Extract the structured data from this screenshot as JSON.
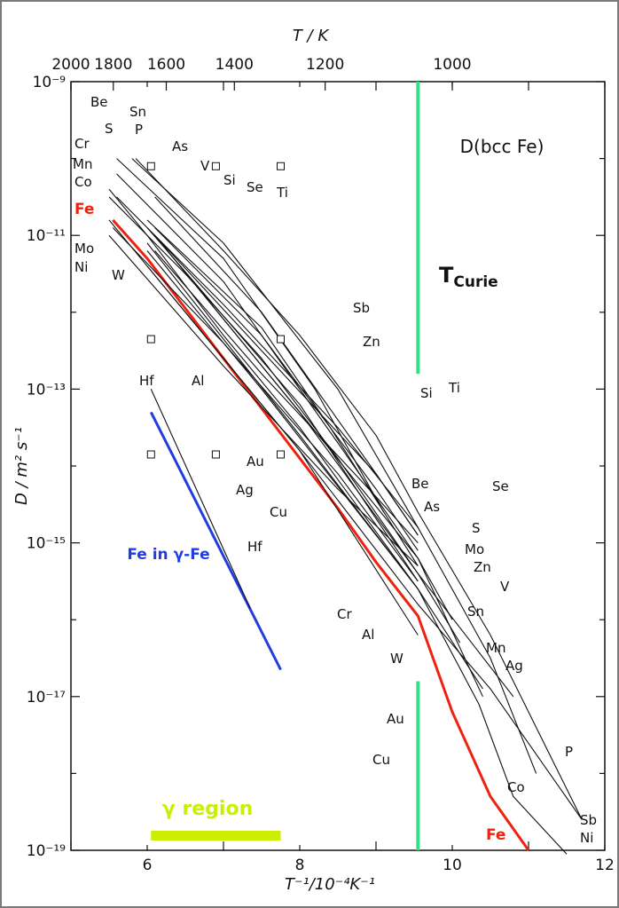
{
  "chart_data": {
    "type": "line",
    "title": "D(bcc Fe)",
    "xlabel": "T⁻¹/10⁻⁴K⁻¹",
    "ylabel": "D / m² s⁻¹",
    "top_axis_label": "T / K",
    "xlim": [
      5,
      12
    ],
    "ylim_log10": [
      -19,
      -9
    ],
    "y_scale": "log",
    "x_ticks": [
      "6",
      "8",
      "10",
      "12"
    ],
    "y_ticks": [
      "10⁻¹⁹",
      "10⁻¹⁷",
      "10⁻¹⁵",
      "10⁻¹³",
      "10⁻¹¹",
      "10⁻⁹"
    ],
    "top_ticks": [
      "2000",
      "1800",
      "1600",
      "1400",
      "1200",
      "1000"
    ],
    "colors": {
      "fe": "#ee2211",
      "gamma": "#1f3de0",
      "curie": "#33e08a",
      "region": "#ccee00"
    },
    "series": [
      {
        "name": "Fe",
        "color": "#ee2211",
        "points": [
          [
            5.55,
            -10.8
          ],
          [
            6.0,
            -11.3
          ],
          [
            6.5,
            -11.95
          ],
          [
            7.0,
            -12.6
          ],
          [
            7.5,
            -13.25
          ],
          [
            8.0,
            -13.9
          ],
          [
            8.5,
            -14.55
          ],
          [
            9.0,
            -15.25
          ],
          [
            9.55,
            -15.95
          ],
          [
            10.0,
            -17.2
          ],
          [
            10.5,
            -18.3
          ],
          [
            11.0,
            -19.0
          ]
        ]
      },
      {
        "name": "Fe in γ-Fe",
        "color": "#1f3de0",
        "points": [
          [
            6.05,
            -13.3
          ],
          [
            7.75,
            -16.65
          ]
        ]
      },
      {
        "name": "Hf",
        "points": [
          [
            6.05,
            -13.0
          ],
          [
            7.35,
            -15.85
          ]
        ]
      },
      {
        "name": "Co",
        "points": [
          [
            5.5,
            -10.4
          ],
          [
            6.0,
            -11.0
          ],
          [
            7.0,
            -12.3
          ],
          [
            8.0,
            -13.5
          ],
          [
            9.55,
            -15.6
          ],
          [
            10.35,
            -17.1
          ],
          [
            10.8,
            -18.3
          ],
          [
            11.5,
            -19.05
          ]
        ]
      },
      {
        "name": "Ni",
        "points": [
          [
            5.5,
            -10.8
          ],
          [
            6.0,
            -11.4
          ],
          [
            7.0,
            -12.6
          ],
          [
            8.0,
            -13.8
          ],
          [
            9.55,
            -15.8
          ],
          [
            10.5,
            -16.9
          ],
          [
            11.7,
            -18.6
          ]
        ]
      },
      {
        "name": "Sb",
        "points": [
          [
            5.85,
            -10.0
          ],
          [
            7.0,
            -11.2
          ],
          [
            8.0,
            -12.3
          ],
          [
            9.0,
            -13.6
          ],
          [
            9.55,
            -14.6
          ],
          [
            10.5,
            -16.2
          ],
          [
            11.7,
            -18.6
          ]
        ]
      },
      {
        "name": "P",
        "points": [
          [
            5.8,
            -10.0
          ],
          [
            7.0,
            -11.1
          ],
          [
            8.5,
            -13.0
          ],
          [
            9.55,
            -14.8
          ],
          [
            10.5,
            -16.5
          ],
          [
            11.1,
            -18.0
          ]
        ]
      },
      {
        "name": "Mn",
        "points": [
          [
            5.5,
            -10.5
          ],
          [
            6.5,
            -11.5
          ],
          [
            7.5,
            -12.6
          ],
          [
            8.5,
            -13.9
          ],
          [
            9.55,
            -15.4
          ],
          [
            10.1,
            -16.3
          ]
        ]
      },
      {
        "name": "Sn",
        "points": [
          [
            5.6,
            -10.2
          ],
          [
            7.0,
            -11.6
          ],
          [
            8.5,
            -13.7
          ],
          [
            9.55,
            -15.2
          ],
          [
            10.0,
            -16.0
          ]
        ]
      },
      {
        "name": "Be",
        "points": [
          [
            5.6,
            -10.0
          ],
          [
            7.0,
            -11.3
          ],
          [
            8.2,
            -13.0
          ],
          [
            9.1,
            -14.6
          ]
        ]
      },
      {
        "name": "Zn",
        "points": [
          [
            6.0,
            -10.8
          ],
          [
            7.5,
            -12.2
          ],
          [
            8.4,
            -13.5
          ],
          [
            9.55,
            -15.3
          ]
        ]
      },
      {
        "name": "Mo",
        "points": [
          [
            5.5,
            -11.0
          ],
          [
            7.0,
            -12.7
          ],
          [
            8.5,
            -14.3
          ],
          [
            9.55,
            -15.3
          ]
        ]
      },
      {
        "name": "Al",
        "points": [
          [
            6.0,
            -11.2
          ],
          [
            7.5,
            -13.0
          ],
          [
            9.0,
            -14.9
          ],
          [
            9.55,
            -15.6
          ]
        ]
      },
      {
        "name": "W",
        "points": [
          [
            6.0,
            -11.4
          ],
          [
            8.0,
            -13.8
          ],
          [
            9.55,
            -16.2
          ]
        ]
      },
      {
        "name": "Cu",
        "points": [
          [
            6.0,
            -11.1
          ],
          [
            8.0,
            -13.6
          ],
          [
            9.55,
            -15.6
          ],
          [
            10.4,
            -16.9
          ]
        ]
      },
      {
        "name": "Au",
        "points": [
          [
            6.1,
            -11.0
          ],
          [
            8.0,
            -13.3
          ],
          [
            9.55,
            -15.2
          ],
          [
            10.4,
            -17.0
          ]
        ]
      },
      {
        "name": "Ag",
        "points": [
          [
            6.1,
            -11.0
          ],
          [
            8.0,
            -13.3
          ],
          [
            9.55,
            -15.4
          ],
          [
            10.8,
            -17.0
          ]
        ]
      },
      {
        "name": "V",
        "points": [
          [
            6.0,
            -10.9
          ],
          [
            8.0,
            -13.2
          ],
          [
            9.55,
            -15.5
          ]
        ]
      },
      {
        "name": "Cr",
        "points": [
          [
            5.55,
            -10.9
          ],
          [
            7.0,
            -12.4
          ],
          [
            8.5,
            -14.1
          ],
          [
            9.55,
            -15.5
          ]
        ]
      },
      {
        "name": "Si",
        "points": [
          [
            6.1,
            -10.9
          ],
          [
            7.5,
            -12.3
          ],
          [
            9.0,
            -14.3
          ],
          [
            9.55,
            -15.1
          ]
        ]
      },
      {
        "name": "Se",
        "points": [
          [
            6.1,
            -11.0
          ],
          [
            7.5,
            -12.5
          ],
          [
            9.0,
            -14.1
          ],
          [
            9.55,
            -14.9
          ]
        ]
      },
      {
        "name": "Ti",
        "points": [
          [
            6.1,
            -11.2
          ],
          [
            7.5,
            -12.8
          ],
          [
            9.0,
            -14.4
          ],
          [
            9.55,
            -15.0
          ]
        ]
      },
      {
        "name": "S",
        "points": [
          [
            5.6,
            -10.5
          ],
          [
            7.0,
            -11.9
          ],
          [
            8.5,
            -13.5
          ],
          [
            9.55,
            -14.8
          ]
        ]
      },
      {
        "name": "As",
        "points": [
          [
            6.1,
            -10.5
          ],
          [
            7.5,
            -12.0
          ],
          [
            9.0,
            -14.1
          ],
          [
            9.55,
            -14.9
          ]
        ]
      }
    ],
    "annotations": {
      "curie": "TCurie",
      "curie_x": 9.55,
      "gamma_region": "γ region",
      "gamma_region_x": [
        6.05,
        7.75
      ],
      "fe_gamma": "Fe in γ-Fe",
      "fe": "Fe"
    },
    "labels": [
      "Be",
      "Sn",
      "S",
      "P",
      "As",
      "V",
      "Cr",
      "Mn",
      "Co",
      "Si",
      "Se",
      "Ti",
      "Mo",
      "Ni",
      "W",
      "Sb",
      "Zn",
      "Al",
      "Hf",
      "Si",
      "Ti",
      "Au",
      "Ag",
      "Cu",
      "Be",
      "Se",
      "As",
      "S",
      "Hf",
      "Mo",
      "Zn",
      "V",
      "Sn",
      "Cr",
      "Al",
      "W",
      "Mn",
      "Ag",
      "Au",
      "Cu",
      "P",
      "Co",
      "Sb",
      "Ni"
    ]
  }
}
